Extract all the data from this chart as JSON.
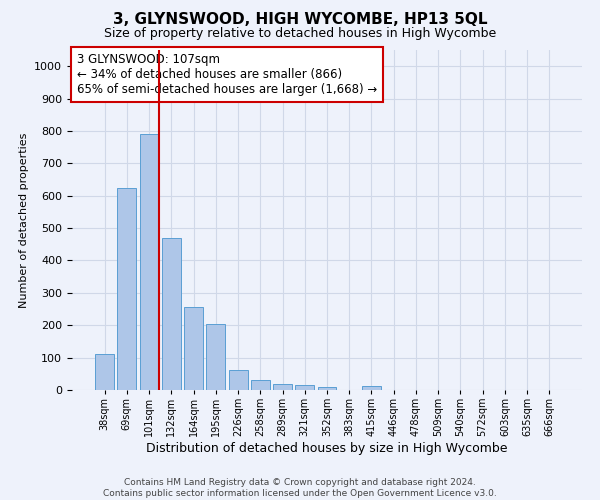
{
  "title": "3, GLYNSWOOD, HIGH WYCOMBE, HP13 5QL",
  "subtitle": "Size of property relative to detached houses in High Wycombe",
  "xlabel": "Distribution of detached houses by size in High Wycombe",
  "ylabel": "Number of detached properties",
  "footer_line1": "Contains HM Land Registry data © Crown copyright and database right 2024.",
  "footer_line2": "Contains public sector information licensed under the Open Government Licence v3.0.",
  "bar_labels": [
    "38sqm",
    "69sqm",
    "101sqm",
    "132sqm",
    "164sqm",
    "195sqm",
    "226sqm",
    "258sqm",
    "289sqm",
    "321sqm",
    "352sqm",
    "383sqm",
    "415sqm",
    "446sqm",
    "478sqm",
    "509sqm",
    "540sqm",
    "572sqm",
    "603sqm",
    "635sqm",
    "666sqm"
  ],
  "bar_values": [
    110,
    625,
    790,
    470,
    255,
    205,
    63,
    30,
    20,
    14,
    10,
    0,
    13,
    0,
    0,
    0,
    0,
    0,
    0,
    0,
    0
  ],
  "bar_color": "#aec6e8",
  "bar_edge_color": "#5a9fd4",
  "grid_color": "#d0d8e8",
  "annotation_text": "3 GLYNSWOOD: 107sqm\n← 34% of detached houses are smaller (866)\n65% of semi-detached houses are larger (1,668) →",
  "vline_x_index": 2,
  "vline_color": "#cc0000",
  "annotation_box_edge_color": "#cc0000",
  "ylim": [
    0,
    1050
  ],
  "yticks": [
    0,
    100,
    200,
    300,
    400,
    500,
    600,
    700,
    800,
    900,
    1000
  ],
  "background_color": "#eef2fb",
  "plot_bg_color": "#eef2fb",
  "title_fontsize": 11,
  "subtitle_fontsize": 9,
  "ylabel_fontsize": 8,
  "xlabel_fontsize": 9,
  "footer_fontsize": 6.5,
  "annotation_fontsize": 8.5
}
